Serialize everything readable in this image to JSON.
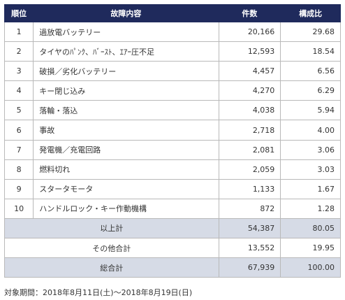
{
  "headers": {
    "rank": "順位",
    "content": "故障内容",
    "count": "件数",
    "ratio": "構成比"
  },
  "rows": [
    {
      "rank": "1",
      "content": "過放電バッテリー",
      "count": "20,166",
      "ratio": "29.68"
    },
    {
      "rank": "2",
      "content": "タイヤのﾊﾟﾝｸ、ﾊﾞｰｽﾄ、ｴｱｰ圧不足",
      "count": "12,593",
      "ratio": "18.54"
    },
    {
      "rank": "3",
      "content": "破損／劣化バッテリー",
      "count": "4,457",
      "ratio": "6.56"
    },
    {
      "rank": "4",
      "content": "キー閉じ込み",
      "count": "4,270",
      "ratio": "6.29"
    },
    {
      "rank": "5",
      "content": "落輪・落込",
      "count": "4,038",
      "ratio": "5.94"
    },
    {
      "rank": "6",
      "content": "事故",
      "count": "2,718",
      "ratio": "4.00"
    },
    {
      "rank": "7",
      "content": "発電機／充電回路",
      "count": "2,081",
      "ratio": "3.06"
    },
    {
      "rank": "8",
      "content": "燃料切れ",
      "count": "2,059",
      "ratio": "3.03"
    },
    {
      "rank": "9",
      "content": "スタータモータ",
      "count": "1,133",
      "ratio": "1.67"
    },
    {
      "rank": "10",
      "content": "ハンドルロック・キー作動機構",
      "count": "872",
      "ratio": "1.28"
    }
  ],
  "subtotal": {
    "label": "以上計",
    "count": "54,387",
    "ratio": "80.05"
  },
  "other": {
    "label": "その他合計",
    "count": "13,552",
    "ratio": "19.95"
  },
  "total": {
    "label": "総合計",
    "count": "67,939",
    "ratio": "100.00"
  },
  "footnote": "対象期間：2018年8月11日(土)～2018年8月19日(日)",
  "colors": {
    "header_bg": "#1f2a5c",
    "summary_bg": "#d6dbe6",
    "border": "#b9b9b9"
  }
}
